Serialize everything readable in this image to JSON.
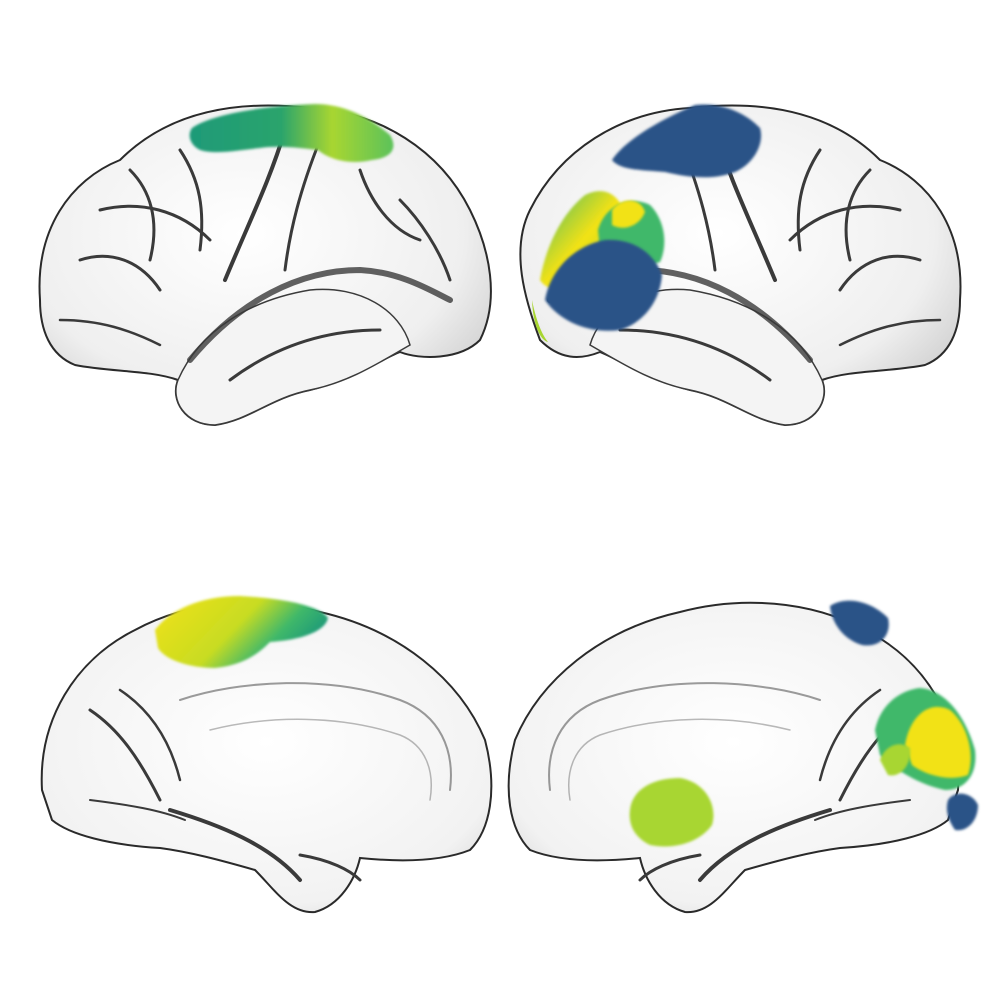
{
  "figure": {
    "background": "#ffffff",
    "surface_color": "#f2f2f2",
    "sulcus_color": "#3a3a3a",
    "outline_color": "#2a2a2a",
    "colormap": "viridis",
    "palette": {
      "dark_blue": "#2b5387",
      "teal": "#1e9a78",
      "green": "#3fb86a",
      "yellow_green": "#a8d631",
      "yellow": "#f2e216"
    },
    "views": [
      {
        "id": "left-lateral",
        "hemisphere": "left",
        "view": "lateral"
      },
      {
        "id": "right-lateral",
        "hemisphere": "right",
        "view": "lateral"
      },
      {
        "id": "left-medial",
        "hemisphere": "left",
        "view": "medial"
      },
      {
        "id": "right-medial",
        "hemisphere": "right",
        "view": "medial"
      }
    ]
  }
}
